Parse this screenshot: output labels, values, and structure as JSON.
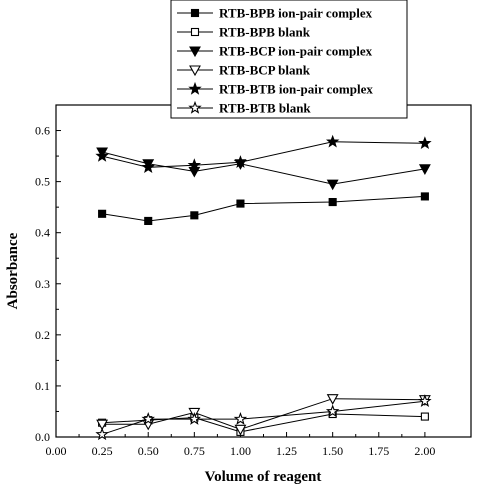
{
  "chart_data": {
    "type": "line",
    "xlabel": "Volume of reagent",
    "ylabel": "Absorbance",
    "xlim": [
      0.0,
      2.25
    ],
    "ylim": [
      0.0,
      0.65
    ],
    "xticks": [
      "0.00",
      "0.25",
      "0.50",
      "0.75",
      "1.00",
      "1.25",
      "1.50",
      "1.75",
      "2.00"
    ],
    "yticks": [
      "0.0",
      "0.1",
      "0.2",
      "0.3",
      "0.4",
      "0.5",
      "0.6"
    ],
    "legend_position": "top",
    "grid": false,
    "series": [
      {
        "name": "RTB-BPB ion-pair complex",
        "marker": "square-filled",
        "x": [
          0.25,
          0.5,
          0.75,
          1.0,
          1.5,
          2.0
        ],
        "y": [
          0.437,
          0.423,
          0.434,
          0.457,
          0.46,
          0.471
        ]
      },
      {
        "name": "RTB-BPB blank",
        "marker": "square-open",
        "x": [
          0.25,
          0.5,
          0.75,
          1.0,
          1.5,
          2.0
        ],
        "y": [
          0.028,
          0.033,
          0.038,
          0.01,
          0.045,
          0.04
        ]
      },
      {
        "name": "RTB-BCP ion-pair complex",
        "marker": "triangle-down-filled",
        "x": [
          0.25,
          0.5,
          0.75,
          1.0,
          1.5,
          2.0
        ],
        "y": [
          0.558,
          0.535,
          0.52,
          0.535,
          0.495,
          0.525
        ]
      },
      {
        "name": "RTB-BCP blank",
        "marker": "triangle-down-open",
        "x": [
          0.25,
          0.5,
          0.75,
          1.0,
          1.5,
          2.0
        ],
        "y": [
          0.025,
          0.025,
          0.048,
          0.015,
          0.075,
          0.073
        ]
      },
      {
        "name": "RTB-BTB ion-pair complex",
        "marker": "star-filled",
        "x": [
          0.25,
          0.5,
          0.75,
          1.0,
          1.5,
          2.0
        ],
        "y": [
          0.55,
          0.528,
          0.532,
          0.538,
          0.578,
          0.575
        ]
      },
      {
        "name": "RTB-BTB blank",
        "marker": "star-open",
        "x": [
          0.25,
          0.5,
          0.75,
          1.0,
          1.5,
          2.0
        ],
        "y": [
          0.005,
          0.035,
          0.035,
          0.035,
          0.05,
          0.07
        ]
      }
    ]
  }
}
